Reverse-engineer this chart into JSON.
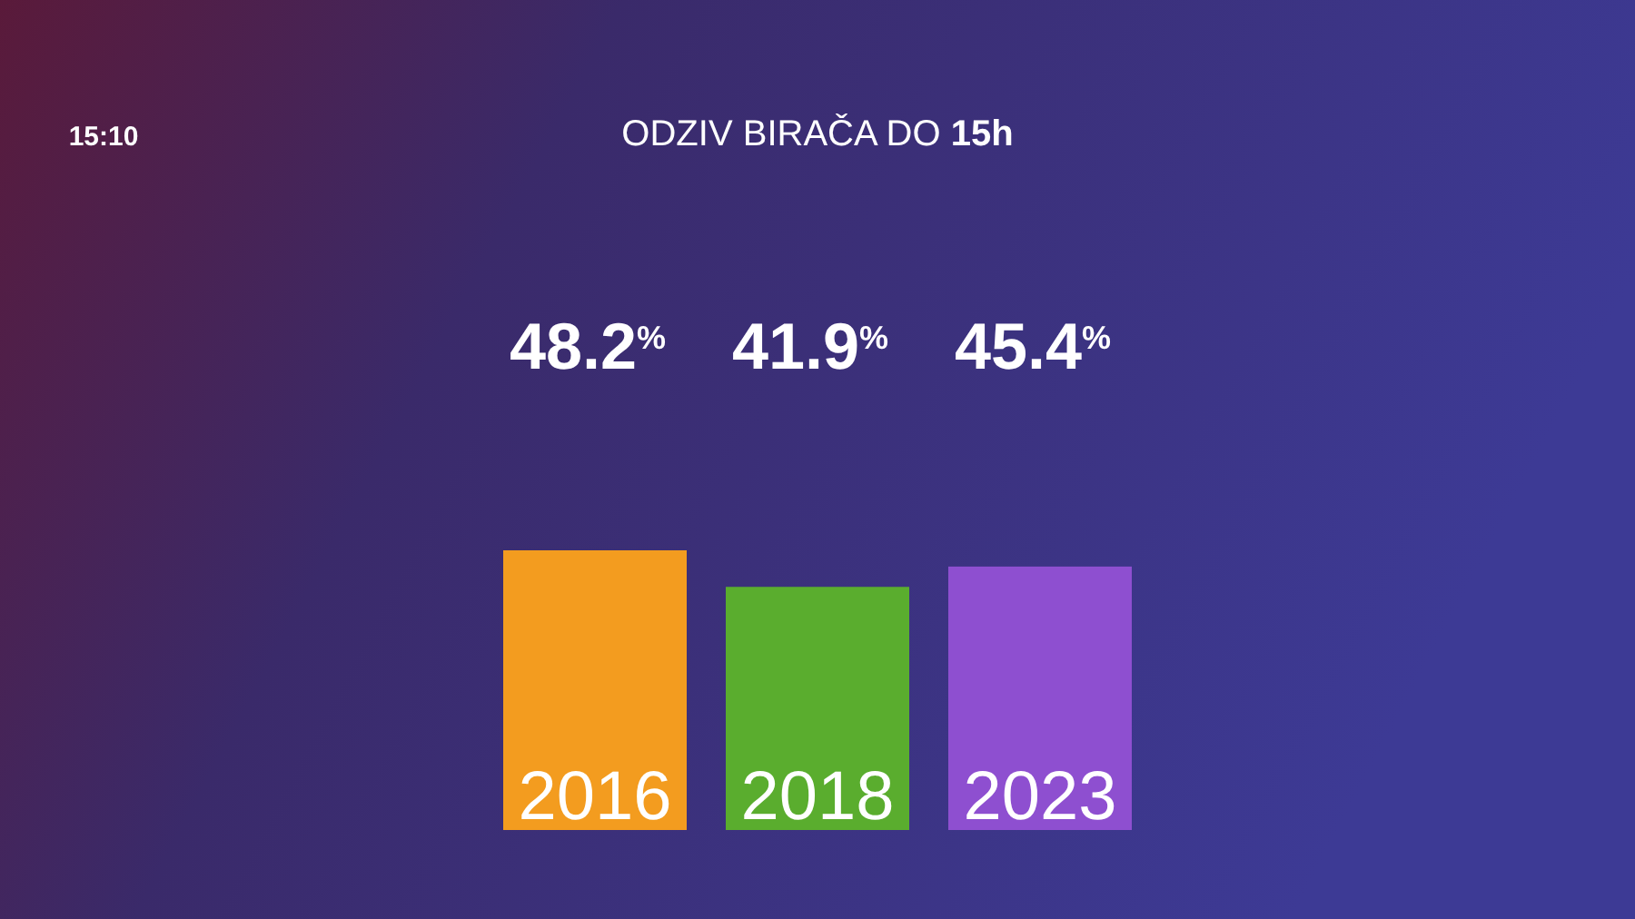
{
  "chart_data": {
    "type": "bar",
    "title": "ODZIV BIRAČA DO 15h",
    "annotations": [
      "15:10"
    ],
    "categories": [
      "2016",
      "2018",
      "2023"
    ],
    "values": [
      48.2,
      41.9,
      45.4
    ],
    "colors": [
      "#f39c1f",
      "#5aad2e",
      "#8e4fd0"
    ],
    "value_labels": [
      "48.2$^{%}$",
      "41.9$^{%}$",
      "45.4$^{%}$"
    ]
  }
}
